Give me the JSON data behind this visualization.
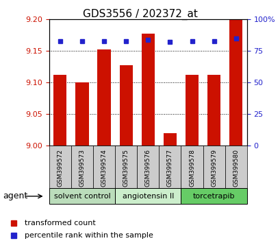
{
  "title": "GDS3556 / 202372_at",
  "samples": [
    "GSM399572",
    "GSM399573",
    "GSM399574",
    "GSM399575",
    "GSM399576",
    "GSM399577",
    "GSM399578",
    "GSM399579",
    "GSM399580"
  ],
  "bar_values": [
    9.112,
    9.1,
    9.153,
    9.128,
    9.178,
    9.02,
    9.112,
    9.112,
    9.2
  ],
  "percentile_values": [
    83,
    83,
    83,
    83,
    84,
    82,
    83,
    83,
    85
  ],
  "ylim_left": [
    9.0,
    9.2
  ],
  "ylim_right": [
    0,
    100
  ],
  "yticks_left": [
    9.0,
    9.05,
    9.1,
    9.15,
    9.2
  ],
  "yticks_right": [
    0,
    25,
    50,
    75,
    100
  ],
  "bar_color": "#cc1100",
  "dot_color": "#2222cc",
  "agent_groups": [
    {
      "label": "solvent control",
      "start": 0,
      "end": 3,
      "color": "#bbddbb"
    },
    {
      "label": "angiotensin II",
      "start": 3,
      "end": 6,
      "color": "#cceecc"
    },
    {
      "label": "torcetrapib",
      "start": 6,
      "end": 9,
      "color": "#66cc66"
    }
  ],
  "xlabel_agent": "agent",
  "legend_bar_label": "transformed count",
  "legend_dot_label": "percentile rank within the sample",
  "title_fontsize": 11,
  "tick_fontsize": 8,
  "label_fontsize": 8,
  "bar_width": 0.6,
  "sample_label_fontsize": 6.5,
  "group_label_fontsize": 8
}
